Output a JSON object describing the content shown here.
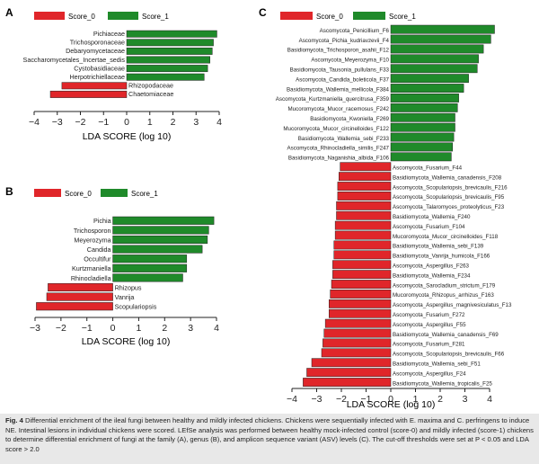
{
  "colors": {
    "score0": "#e0262a",
    "score1": "#1f8a2a",
    "axis": "#222222",
    "caption_bg": "#e8e8e8"
  },
  "panels": [
    {
      "letter": "A",
      "legend": [
        "Score_0",
        "Score_1"
      ]
    },
    {
      "letter": "B",
      "legend": [
        "Score_0",
        "Score_1"
      ]
    },
    {
      "letter": "C",
      "legend": [
        "Score_0",
        "Score_1"
      ]
    }
  ],
  "chart_data": [
    {
      "type": "bar",
      "orientation": "horizontal",
      "panel": "A",
      "xlabel": "LDA SCORE (log 10)",
      "xlim": [
        -4,
        4
      ],
      "xticks": [
        -4,
        -3,
        -2,
        -1,
        0,
        1,
        2,
        3,
        4
      ],
      "legend": [
        "Score_0",
        "Score_1"
      ],
      "bars": [
        {
          "label": "Pichiaceae",
          "value": 3.9,
          "group": "Score_1"
        },
        {
          "label": "Trichosporonaceae",
          "value": 3.75,
          "group": "Score_1"
        },
        {
          "label": "Debaryomycetaceae",
          "value": 3.7,
          "group": "Score_1"
        },
        {
          "label": "Saccharomycetales_Incertae_sedis",
          "value": 3.6,
          "group": "Score_1"
        },
        {
          "label": "Cystobasidiaceae",
          "value": 3.5,
          "group": "Score_1"
        },
        {
          "label": "Herpotrichiellaceae",
          "value": 3.35,
          "group": "Score_1"
        },
        {
          "label": "Rhizopodaceae",
          "value": -2.8,
          "group": "Score_0"
        },
        {
          "label": "Chaetomiaceae",
          "value": -3.3,
          "group": "Score_0"
        }
      ]
    },
    {
      "type": "bar",
      "orientation": "horizontal",
      "panel": "B",
      "xlabel": "LDA SCORE (log 10)",
      "xlim": [
        -3,
        4
      ],
      "xticks": [
        -3,
        -2,
        -1,
        0,
        1,
        2,
        3,
        4
      ],
      "legend": [
        "Score_0",
        "Score_1"
      ],
      "bars": [
        {
          "label": "Pichia",
          "value": 3.9,
          "group": "Score_1"
        },
        {
          "label": "Trichosporon",
          "value": 3.7,
          "group": "Score_1"
        },
        {
          "label": "Meyerozyma",
          "value": 3.65,
          "group": "Score_1"
        },
        {
          "label": "Candida",
          "value": 3.45,
          "group": "Score_1"
        },
        {
          "label": "Occultifur",
          "value": 2.85,
          "group": "Score_1"
        },
        {
          "label": "Kurtzmaniella",
          "value": 2.85,
          "group": "Score_1"
        },
        {
          "label": "Rhinocladiella",
          "value": 2.7,
          "group": "Score_1"
        },
        {
          "label": "Rhizopus",
          "value": -2.5,
          "group": "Score_0"
        },
        {
          "label": "Vanrija",
          "value": -2.55,
          "group": "Score_0"
        },
        {
          "label": "Scopulariopsis",
          "value": -2.95,
          "group": "Score_0"
        }
      ]
    },
    {
      "type": "bar",
      "orientation": "horizontal",
      "panel": "C",
      "xlabel": "LDA SCORE (log 10)",
      "xlim": [
        -4,
        4
      ],
      "xticks": [
        -4,
        -3,
        -2,
        -1,
        0,
        1,
        2,
        3,
        4
      ],
      "legend": [
        "Score_0",
        "Score_1"
      ],
      "bars": [
        {
          "label": "Ascomycota_Penicillium_F6",
          "value": 4.2,
          "group": "Score_1"
        },
        {
          "label": "Ascomycota_Pichia_kudriavzevii_F4",
          "value": 4.05,
          "group": "Score_1"
        },
        {
          "label": "Basidiomycota_Trichosporon_asahii_F12",
          "value": 3.75,
          "group": "Score_1"
        },
        {
          "label": "Ascomycota_Meyerozyma_F10",
          "value": 3.55,
          "group": "Score_1"
        },
        {
          "label": "Basidiomycota_Tausonia_pullulans_F33",
          "value": 3.5,
          "group": "Score_1"
        },
        {
          "label": "Ascomycota_Candida_boleticola_F37",
          "value": 3.15,
          "group": "Score_1"
        },
        {
          "label": "Basidiomycota_Wallemia_mellicola_F384",
          "value": 2.95,
          "group": "Score_1"
        },
        {
          "label": "Ascomycota_Kurtzmaniella_quercitrusa_F359",
          "value": 2.75,
          "group": "Score_1"
        },
        {
          "label": "Mucoromycota_Mucor_racemosus_F242",
          "value": 2.7,
          "group": "Score_1"
        },
        {
          "label": "Basidiomycota_Kwoniella_F269",
          "value": 2.6,
          "group": "Score_1"
        },
        {
          "label": "Mucoromycota_Mucor_circinelloides_F122",
          "value": 2.6,
          "group": "Score_1"
        },
        {
          "label": "Basidiomycota_Wallemia_sebi_F233",
          "value": 2.55,
          "group": "Score_1"
        },
        {
          "label": "Ascomycota_Rhinocladiella_similis_F247",
          "value": 2.5,
          "group": "Score_1"
        },
        {
          "label": "Basidiomycota_Naganishia_albida_F106",
          "value": 2.45,
          "group": "Score_1"
        },
        {
          "label": "Ascomycota_Fusarium_F44",
          "value": -2.05,
          "group": "Score_0"
        },
        {
          "label": "Basidiomycota_Wallemia_canadensis_F208",
          "value": -2.1,
          "group": "Score_0"
        },
        {
          "label": "Ascomycota_Scopulariopsis_brevicaulis_F216",
          "value": -2.15,
          "group": "Score_0"
        },
        {
          "label": "Ascomycota_Scopulariopsis_brevicaulis_F95",
          "value": -2.15,
          "group": "Score_0"
        },
        {
          "label": "Ascomycota_Talaromyces_proteolyticus_F23",
          "value": -2.2,
          "group": "Score_0"
        },
        {
          "label": "Basidiomycota_Wallemia_F240",
          "value": -2.2,
          "group": "Score_0"
        },
        {
          "label": "Ascomycota_Fusarium_F104",
          "value": -2.25,
          "group": "Score_0"
        },
        {
          "label": "Mucoromycota_Mucor_circinelloides_F118",
          "value": -2.25,
          "group": "Score_0"
        },
        {
          "label": "Basidiomycota_Wallemia_sebi_F139",
          "value": -2.3,
          "group": "Score_0"
        },
        {
          "label": "Basidiomycota_Vanrija_humicola_F166",
          "value": -2.3,
          "group": "Score_0"
        },
        {
          "label": "Ascomycota_Aspergillus_F263",
          "value": -2.35,
          "group": "Score_0"
        },
        {
          "label": "Basidiomycota_Wallemia_F234",
          "value": -2.35,
          "group": "Score_0"
        },
        {
          "label": "Ascomycota_Sarocladium_strictum_F179",
          "value": -2.4,
          "group": "Score_0"
        },
        {
          "label": "Mucoromycota_Rhizopus_arrhizus_F163",
          "value": -2.45,
          "group": "Score_0"
        },
        {
          "label": "Ascomycota_Aspergillus_magnivesiculatus_F13",
          "value": -2.5,
          "group": "Score_0"
        },
        {
          "label": "Ascomycota_Fusarium_F272",
          "value": -2.5,
          "group": "Score_0"
        },
        {
          "label": "Ascomycota_Aspergillus_F55",
          "value": -2.65,
          "group": "Score_0"
        },
        {
          "label": "Basidiomycota_Wallemia_canadensis_F69",
          "value": -2.7,
          "group": "Score_0"
        },
        {
          "label": "Ascomycota_Fusarium_F281",
          "value": -2.75,
          "group": "Score_0"
        },
        {
          "label": "Ascomycota_Scopulariopsis_brevicaulis_F66",
          "value": -2.8,
          "group": "Score_0"
        },
        {
          "label": "Basidiomycota_Wallemia_sebi_F51",
          "value": -3.2,
          "group": "Score_0"
        },
        {
          "label": "Ascomycota_Aspergillus_F24",
          "value": -3.4,
          "group": "Score_0"
        },
        {
          "label": "Basidiomycota_Wallemia_tropicalis_F25",
          "value": -3.55,
          "group": "Score_0"
        }
      ]
    }
  ],
  "caption": {
    "fig_label": "Fig. 4",
    "text": " Differential enrichment of the ileal fungi between healthy and mildly infected chickens. Chickens were sequentially infected with E. maxima and C. perfringens to induce NE. Intestinal lesions in individual chickens were scored. LEfSe analysis was performed between healthy mock-infected control (score-0) and mildly infected (score-1) chickens to determine differential enrichment of fungi at the family (A), genus (B), and amplicon sequence variant (ASV) levels (C). The cut-off thresholds were set at P < 0.05 and LDA score > 2.0"
  }
}
